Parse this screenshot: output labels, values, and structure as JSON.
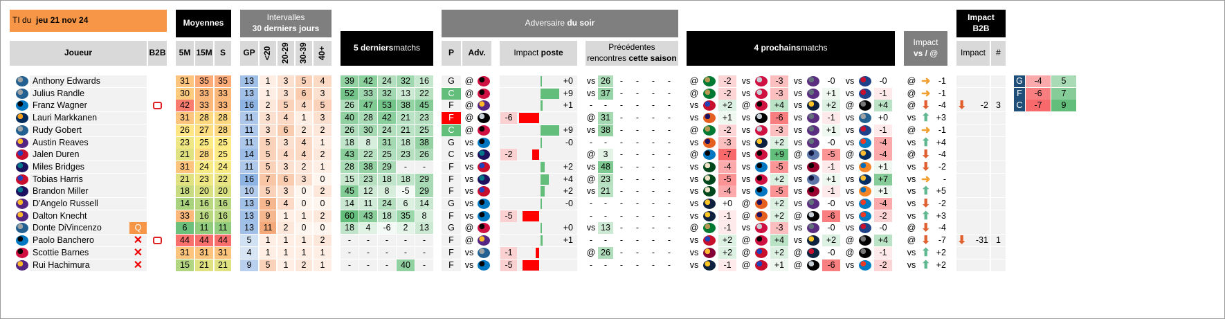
{
  "header": {
    "ti_prefix": "TI du",
    "ti_date": "jeu 21 nov 24",
    "moyennes": "Moyennes",
    "intervalles_1": "Intervalles",
    "intervalles_2": "30 derniers jours",
    "last5_bold": "5 derniers",
    "last5_rest": " matchs",
    "adv_rest": "Adversaire ",
    "adv_bold": "du soir",
    "impact_poste_rest": "Impact ",
    "impact_poste_bold": "poste",
    "prec_1": "Précédentes",
    "prec_2_rest": "rencontres ",
    "prec_2_bold": "cette saison",
    "next4_bold": "4 prochains",
    "next4_rest": " matchs",
    "impact_vs_1": "Impact",
    "impact_vs_2": "vs / @",
    "impact_b2b_1": "Impact",
    "impact_b2b_2": "B2B",
    "col_joueur": "Joueur",
    "col_b2b": "B2B",
    "col_5m": "5M",
    "col_15m": "15M",
    "col_s": "S",
    "col_gp": "GP",
    "col_lt20": "<20",
    "col_2029": "20-29",
    "col_3039": "30-39",
    "col_40": "40+",
    "col_p": "P",
    "col_adv": "Adv.",
    "col_impact": "Impact",
    "col_hash": "#"
  },
  "colors": {
    "orange": "#f79646",
    "green": "#63be7b",
    "red": "#f8696b",
    "yellow": "#ffeb84",
    "blue": "#5a8ac6",
    "black": "#000000",
    "gray": "#7f7f7f"
  },
  "players": [
    {
      "name": "Anthony Edwards",
      "team": "wolves",
      "out": false,
      "b2b": false,
      "q": false,
      "m5": "31",
      "m15": "35",
      "s": "35",
      "gp": "13",
      "i1": "1",
      "i2": "3",
      "i3": "5",
      "i4": "4",
      "last5": [
        "39",
        "42",
        "24",
        "32",
        "16"
      ],
      "pos": "G",
      "loc": "@",
      "opp": "raptors",
      "ip": "+0",
      "ipv": 0,
      "pv": "vs",
      "prev": [
        "26",
        "-",
        "-",
        "-",
        "-"
      ],
      "next": [
        {
          "l": "@",
          "t": "celtics",
          "v": "-2"
        },
        {
          "l": "vs",
          "t": "rockets",
          "v": "-3"
        },
        {
          "l": "vs",
          "t": "kings",
          "v": "-0"
        },
        {
          "l": "vs",
          "t": "clippers",
          "v": "-0"
        }
      ],
      "va": "@",
      "vdir": "right",
      "vv": "-1",
      "bi": "",
      "bn": ""
    },
    {
      "name": "Julius Randle",
      "team": "wolves",
      "out": false,
      "b2b": false,
      "q": false,
      "m5": "30",
      "m15": "33",
      "s": "33",
      "gp": "13",
      "i1": "1",
      "i2": "3",
      "i3": "6",
      "i4": "3",
      "last5": [
        "52",
        "33",
        "32",
        "13",
        "22"
      ],
      "pos": "C",
      "loc": "@",
      "opp": "raptors",
      "ip": "+9",
      "ipv": 9,
      "pv": "vs",
      "prev": [
        "37",
        "-",
        "-",
        "-",
        "-"
      ],
      "next": [
        {
          "l": "@",
          "t": "celtics",
          "v": "-2"
        },
        {
          "l": "vs",
          "t": "rockets",
          "v": "-3"
        },
        {
          "l": "vs",
          "t": "kings",
          "v": "+1"
        },
        {
          "l": "vs",
          "t": "clippers",
          "v": "-1"
        }
      ],
      "va": "@",
      "vdir": "right",
      "vv": "-1",
      "bi": "",
      "bn": ""
    },
    {
      "name": "Franz Wagner",
      "team": "magic",
      "out": false,
      "b2b": true,
      "q": false,
      "m5": "42",
      "m15": "33",
      "s": "33",
      "gp": "16",
      "i1": "2",
      "i2": "5",
      "i3": "4",
      "i4": "5",
      "last5": [
        "26",
        "47",
        "53",
        "38",
        "45"
      ],
      "pos": "F",
      "loc": "@",
      "opp": "lakers",
      "ip": "+1",
      "ipv": 1,
      "pv": "-",
      "prev": [
        "-",
        "-",
        "-",
        "-",
        "-"
      ],
      "next": [
        {
          "l": "vs",
          "t": "pistons",
          "v": "+2"
        },
        {
          "l": "@",
          "t": "bulls",
          "v": "+4"
        },
        {
          "l": "vs",
          "t": "nuggets",
          "v": "+2"
        },
        {
          "l": "@",
          "t": "nets",
          "v": "+4"
        }
      ],
      "va": "@",
      "vdir": "down",
      "vv": "-4",
      "bi": "-2",
      "bn": "3"
    },
    {
      "name": "Lauri Markkanen",
      "team": "jazz",
      "out": false,
      "b2b": false,
      "q": false,
      "m5": "31",
      "m15": "28",
      "s": "28",
      "gp": "11",
      "i1": "3",
      "i2": "4",
      "i3": "1",
      "i4": "3",
      "last5": [
        "40",
        "28",
        "42",
        "21",
        "23"
      ],
      "pos": "F",
      "loc": "@",
      "opp": "spurs",
      "ip": "-6",
      "ipv": -6,
      "pv": "@",
      "prev": [
        "31",
        "-",
        "-",
        "-",
        "-"
      ],
      "next": [
        {
          "l": "vs",
          "t": "suns",
          "v": "+1"
        },
        {
          "l": "vs",
          "t": "spurs",
          "v": "-6"
        },
        {
          "l": "vs",
          "t": "kings",
          "v": "-1"
        },
        {
          "l": "vs",
          "t": "wolves",
          "v": "+0"
        }
      ],
      "va": "vs",
      "vdir": "up",
      "vv": "+3",
      "bi": "",
      "bn": ""
    },
    {
      "name": "Rudy Gobert",
      "team": "wolves",
      "out": false,
      "b2b": false,
      "q": false,
      "m5": "26",
      "m15": "27",
      "s": "28",
      "gp": "11",
      "i1": "3",
      "i2": "6",
      "i3": "2",
      "i4": "2",
      "last5": [
        "26",
        "30",
        "24",
        "21",
        "25"
      ],
      "pos": "C",
      "loc": "@",
      "opp": "raptors",
      "ip": "+9",
      "ipv": 9,
      "pv": "vs",
      "prev": [
        "38",
        "-",
        "-",
        "-",
        "-"
      ],
      "next": [
        {
          "l": "@",
          "t": "celtics",
          "v": "-2"
        },
        {
          "l": "vs",
          "t": "rockets",
          "v": "-3"
        },
        {
          "l": "vs",
          "t": "kings",
          "v": "+1"
        },
        {
          "l": "vs",
          "t": "clippers",
          "v": "-1"
        }
      ],
      "va": "@",
      "vdir": "right",
      "vv": "-1",
      "bi": "",
      "bn": ""
    },
    {
      "name": "Austin Reaves",
      "team": "lakers",
      "out": false,
      "b2b": false,
      "q": false,
      "m5": "23",
      "m15": "25",
      "s": "25",
      "gp": "11",
      "i1": "5",
      "i2": "3",
      "i3": "4",
      "i4": "1",
      "last5": [
        "18",
        "8",
        "31",
        "18",
        "38"
      ],
      "pos": "G",
      "loc": "vs",
      "opp": "magic",
      "ip": "-0",
      "ipv": 0,
      "pv": "-",
      "prev": [
        "-",
        "-",
        "-",
        "-",
        "-"
      ],
      "next": [
        {
          "l": "vs",
          "t": "suns",
          "v": "-3"
        },
        {
          "l": "vs",
          "t": "nuggets",
          "v": "+2"
        },
        {
          "l": "vs",
          "t": "kings",
          "v": "-0"
        },
        {
          "l": "vs",
          "t": "thunder",
          "v": "-4"
        }
      ],
      "va": "vs",
      "vdir": "up",
      "vv": "+4",
      "bi": "",
      "bn": ""
    },
    {
      "name": "Jalen Duren",
      "team": "pistons",
      "out": false,
      "b2b": false,
      "q": false,
      "m5": "21",
      "m15": "28",
      "s": "25",
      "gp": "14",
      "i1": "5",
      "i2": "4",
      "i3": "4",
      "i4": "2",
      "last5": [
        "43",
        "22",
        "25",
        "23",
        "26"
      ],
      "pos": "C",
      "loc": "vs",
      "opp": "hornets",
      "ip": "-2",
      "ipv": -2,
      "pv": "@",
      "prev": [
        "3",
        "-",
        "-",
        "-",
        "-"
      ],
      "next": [
        {
          "l": "@",
          "t": "magic",
          "v": "-7"
        },
        {
          "l": "vs",
          "t": "raptors",
          "v": "+9"
        },
        {
          "l": "@",
          "t": "grizzlies",
          "v": "-5"
        },
        {
          "l": "@",
          "t": "pacers",
          "v": "-4"
        }
      ],
      "va": "@",
      "vdir": "down",
      "vv": "-4",
      "bi": "",
      "bn": ""
    },
    {
      "name": "Miles Bridges",
      "team": "hornets",
      "out": false,
      "b2b": false,
      "q": false,
      "m5": "31",
      "m15": "24",
      "s": "24",
      "gp": "11",
      "i1": "5",
      "i2": "3",
      "i3": "2",
      "i4": "1",
      "last5": [
        "28",
        "38",
        "29",
        "-",
        "-"
      ],
      "pos": "F",
      "loc": "vs",
      "opp": "pistons",
      "ip": "+2",
      "ipv": 2,
      "pv": "vs",
      "prev": [
        "48",
        "-",
        "-",
        "-",
        "-"
      ],
      "next": [
        {
          "l": "vs",
          "t": "bucks",
          "v": "-4"
        },
        {
          "l": "vs",
          "t": "magic",
          "v": "-5"
        },
        {
          "l": "vs",
          "t": "heat",
          "v": "-1"
        },
        {
          "l": "vs",
          "t": "knicks",
          "v": "+1"
        }
      ],
      "va": "vs",
      "vdir": "down",
      "vv": "-2",
      "bi": "",
      "bn": ""
    },
    {
      "name": "Tobias Harris",
      "team": "pistons",
      "out": false,
      "b2b": false,
      "q": false,
      "m5": "21",
      "m15": "23",
      "s": "22",
      "gp": "16",
      "i1": "7",
      "i2": "6",
      "i3": "3",
      "i4": "0",
      "last5": [
        "15",
        "23",
        "18",
        "18",
        "29"
      ],
      "pos": "F",
      "loc": "vs",
      "opp": "hornets",
      "ip": "+4",
      "ipv": 4,
      "pv": "@",
      "prev": [
        "23",
        "-",
        "-",
        "-",
        "-"
      ],
      "next": [
        {
          "l": "vs",
          "t": "bucks",
          "v": "-5"
        },
        {
          "l": "vs",
          "t": "raptors",
          "v": "+2"
        },
        {
          "l": "vs",
          "t": "grizzlies",
          "v": "+1"
        },
        {
          "l": "vs",
          "t": "pacers",
          "v": "+7"
        }
      ],
      "va": "vs",
      "vdir": "right",
      "vv": "-",
      "bi": "",
      "bn": ""
    },
    {
      "name": "Brandon Miller",
      "team": "hornets",
      "out": false,
      "b2b": false,
      "q": false,
      "m5": "18",
      "m15": "20",
      "s": "20",
      "gp": "10",
      "i1": "5",
      "i2": "3",
      "i3": "0",
      "i4": "2",
      "last5": [
        "45",
        "12",
        "8",
        "-5",
        "29"
      ],
      "pos": "F",
      "loc": "vs",
      "opp": "pistons",
      "ip": "+2",
      "ipv": 2,
      "pv": "vs",
      "prev": [
        "21",
        "-",
        "-",
        "-",
        "-"
      ],
      "next": [
        {
          "l": "vs",
          "t": "bucks",
          "v": "-4"
        },
        {
          "l": "vs",
          "t": "magic",
          "v": "-5"
        },
        {
          "l": "vs",
          "t": "heat",
          "v": "-1"
        },
        {
          "l": "vs",
          "t": "knicks",
          "v": "+1"
        }
      ],
      "va": "vs",
      "vdir": "up",
      "vv": "+5",
      "bi": "",
      "bn": ""
    },
    {
      "name": "D'Angelo Russell",
      "team": "lakers",
      "out": false,
      "b2b": false,
      "q": false,
      "m5": "14",
      "m15": "16",
      "s": "16",
      "gp": "13",
      "i1": "9",
      "i2": "4",
      "i3": "0",
      "i4": "0",
      "last5": [
        "14",
        "11",
        "24",
        "6",
        "14"
      ],
      "pos": "G",
      "loc": "vs",
      "opp": "magic",
      "ip": "-0",
      "ipv": 0,
      "pv": "-",
      "prev": [
        "-",
        "-",
        "-",
        "-",
        "-"
      ],
      "next": [
        {
          "l": "vs",
          "t": "nuggets",
          "v": "+0"
        },
        {
          "l": "@",
          "t": "suns",
          "v": "+2"
        },
        {
          "l": "vs",
          "t": "kings",
          "v": "-0"
        },
        {
          "l": "vs",
          "t": "thunder",
          "v": "-4"
        }
      ],
      "va": "vs",
      "vdir": "down",
      "vv": "-2",
      "bi": "",
      "bn": ""
    },
    {
      "name": "Dalton Knecht",
      "team": "lakers",
      "out": false,
      "b2b": false,
      "q": false,
      "m5": "33",
      "m15": "16",
      "s": "16",
      "gp": "13",
      "i1": "9",
      "i2": "1",
      "i3": "1",
      "i4": "2",
      "last5": [
        "60",
        "43",
        "18",
        "35",
        "8"
      ],
      "pos": "F",
      "loc": "vs",
      "opp": "magic",
      "ip": "-5",
      "ipv": -5,
      "pv": "-",
      "prev": [
        "-",
        "-",
        "-",
        "-",
        "-"
      ],
      "next": [
        {
          "l": "vs",
          "t": "nuggets",
          "v": "-1"
        },
        {
          "l": "@",
          "t": "suns",
          "v": "+2"
        },
        {
          "l": "@",
          "t": "spurs",
          "v": "-6"
        },
        {
          "l": "vs",
          "t": "thunder",
          "v": "-2"
        }
      ],
      "va": "vs",
      "vdir": "up",
      "vv": "+3",
      "bi": "",
      "bn": ""
    },
    {
      "name": "Donte DiVincenzo",
      "team": "wolves",
      "out": false,
      "b2b": false,
      "q": true,
      "qlabel": "Q",
      "m5": "6",
      "m15": "11",
      "s": "11",
      "gp": "13",
      "i1": "11",
      "i2": "2",
      "i3": "0",
      "i4": "0",
      "last5": [
        "18",
        "4",
        "-6",
        "2",
        "13"
      ],
      "pos": "G",
      "loc": "@",
      "opp": "raptors",
      "ip": "+0",
      "ipv": 0,
      "pv": "vs",
      "prev": [
        "13",
        "-",
        "-",
        "-",
        "-"
      ],
      "next": [
        {
          "l": "@",
          "t": "celtics",
          "v": "-1"
        },
        {
          "l": "vs",
          "t": "rockets",
          "v": "-3"
        },
        {
          "l": "vs",
          "t": "kings",
          "v": "-0"
        },
        {
          "l": "vs",
          "t": "clippers",
          "v": "-0"
        }
      ],
      "va": "@",
      "vdir": "down",
      "vv": "-4",
      "bi": "",
      "bn": ""
    },
    {
      "name": "Paolo Banchero",
      "team": "magic",
      "out": true,
      "b2b": true,
      "q": false,
      "m5": "44",
      "m15": "44",
      "s": "44",
      "gp": "5",
      "i1": "1",
      "i2": "1",
      "i3": "1",
      "i4": "2",
      "last5": [
        "-",
        "-",
        "-",
        "-",
        "-"
      ],
      "pos": "F",
      "loc": "@",
      "opp": "lakers",
      "ip": "+1",
      "ipv": 1,
      "pv": "-",
      "prev": [
        "-",
        "-",
        "-",
        "-",
        "-"
      ],
      "next": [
        {
          "l": "vs",
          "t": "pistons",
          "v": "+2"
        },
        {
          "l": "@",
          "t": "bulls",
          "v": "+4"
        },
        {
          "l": "vs",
          "t": "nuggets",
          "v": "+2"
        },
        {
          "l": "@",
          "t": "nets",
          "v": "+4"
        }
      ],
      "va": "@",
      "vdir": "down",
      "vv": "-7",
      "bi": "-31",
      "bn": "1"
    },
    {
      "name": "Scottie Barnes",
      "team": "raptors",
      "out": true,
      "b2b": false,
      "q": false,
      "m5": "31",
      "m15": "31",
      "s": "31",
      "gp": "4",
      "i1": "1",
      "i2": "1",
      "i3": "1",
      "i4": "1",
      "last5": [
        "-",
        "-",
        "-",
        "-",
        "-"
      ],
      "pos": "F",
      "loc": "vs",
      "opp": "wolves",
      "ip": "-1",
      "ipv": -1,
      "pv": "@",
      "prev": [
        "26",
        "-",
        "-",
        "-",
        "-"
      ],
      "next": [
        {
          "l": "vs",
          "t": "cavaliers",
          "v": "+2"
        },
        {
          "l": "@",
          "t": "pistons",
          "v": "+2"
        },
        {
          "l": "@",
          "t": "pelicans",
          "v": "-0"
        },
        {
          "l": "@",
          "t": "nets",
          "v": "-1"
        }
      ],
      "va": "vs",
      "vdir": "up",
      "vv": "+2",
      "bi": "",
      "bn": ""
    },
    {
      "name": "Rui Hachimura",
      "team": "lakers",
      "out": true,
      "b2b": false,
      "q": false,
      "m5": "15",
      "m15": "21",
      "s": "21",
      "gp": "9",
      "i1": "5",
      "i2": "1",
      "i3": "2",
      "i4": "1",
      "last5": [
        "-",
        "-",
        "-",
        "40",
        "-"
      ],
      "pos": "F",
      "loc": "vs",
      "opp": "magic",
      "ip": "-5",
      "ipv": -5,
      "pv": "-",
      "prev": [
        "-",
        "-",
        "-",
        "-",
        "-"
      ],
      "next": [
        {
          "l": "vs",
          "t": "nuggets",
          "v": "-1"
        },
        {
          "l": "@",
          "t": "pistons",
          "v": "+1"
        },
        {
          "l": "@",
          "t": "spurs",
          "v": "-6"
        },
        {
          "l": "vs",
          "t": "thunder",
          "v": "-2"
        }
      ],
      "va": "vs",
      "vdir": "up",
      "vv": "+2",
      "bi": "",
      "bn": ""
    }
  ],
  "right_table": [
    {
      "pos": "G",
      "a": "-4",
      "b": "5"
    },
    {
      "pos": "F",
      "a": "-6",
      "b": "7"
    },
    {
      "pos": "C",
      "a": "-7",
      "b": "9"
    }
  ]
}
